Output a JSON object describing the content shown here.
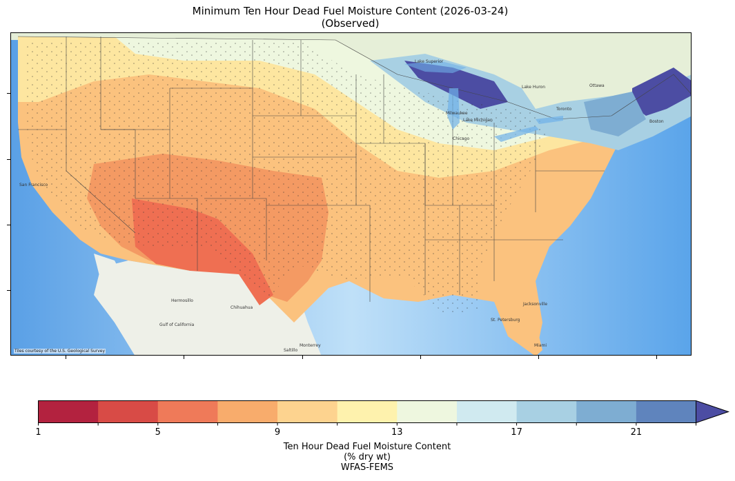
{
  "title": {
    "line1": "Minimum Ten Hour Dead Fuel Moisture Content (2026-03-24)",
    "line2": "(Observed)"
  },
  "map": {
    "attribution": "Tiles courtesy of the U.S. Geological Survey",
    "cities": [
      "San Francisco",
      "Hermosillo",
      "Chihuahua",
      "Monterrey",
      "Gulf of California",
      "Lake Superior",
      "Lake Michigan",
      "Lake Huron",
      "Milwaukee",
      "Chicago",
      "Ottawa",
      "Toronto",
      "Boston",
      "Jacksonville",
      "St. Petersburg",
      "Miami",
      "Saltillo"
    ]
  },
  "colorbar": {
    "label_line1": "Ten Hour Dead Fuel Moisture Content",
    "label_line2": "(% dry wt)",
    "label_line3": "WFAS-FEMS",
    "tick_labels": [
      "1",
      "5",
      "9",
      "13",
      "17",
      "21"
    ],
    "tick_values": [
      1,
      5,
      9,
      13,
      17,
      21
    ],
    "boundaries": [
      1,
      3,
      5,
      7,
      9,
      11,
      13,
      15,
      17,
      19,
      21,
      23
    ],
    "extend": "max",
    "colors": [
      "#b3223f",
      "#d84b46",
      "#ef7a59",
      "#f8ac6c",
      "#fdd38f",
      "#fef2ad",
      "#eef7df",
      "#d0eaf0",
      "#a8d0e3",
      "#7eadd2",
      "#5f84bd",
      "#4c4da3"
    ]
  },
  "colors": {
    "ocean": "#6fb0e8",
    "land_mexico": "#eef0e8",
    "land_canada": "#e8f0dd",
    "border": "#3a3a3a"
  }
}
